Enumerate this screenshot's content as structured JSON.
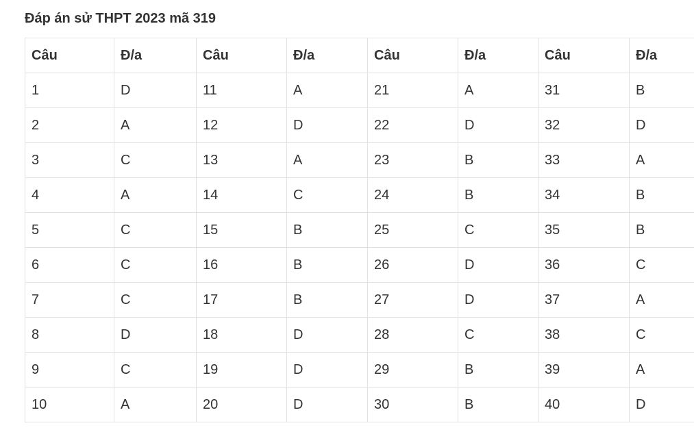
{
  "header": {
    "title": "Đáp án sử THPT 2023 mã 319"
  },
  "table": {
    "columns": [
      "Câu",
      "Đ/a",
      "Câu",
      "Đ/a",
      "Câu",
      "Đ/a",
      "Câu",
      "Đ/a"
    ],
    "rows": [
      [
        "1",
        "D",
        "11",
        "A",
        "21",
        "A",
        "31",
        "B"
      ],
      [
        "2",
        "A",
        "12",
        "D",
        "22",
        "D",
        "32",
        "D"
      ],
      [
        "3",
        "C",
        "13",
        "A",
        "23",
        "B",
        "33",
        "A"
      ],
      [
        "4",
        "A",
        "14",
        "C",
        "24",
        "B",
        "34",
        "B"
      ],
      [
        "5",
        "C",
        "15",
        "B",
        "25",
        "C",
        "35",
        "B"
      ],
      [
        "6",
        "C",
        "16",
        "B",
        "26",
        "D",
        "36",
        "C"
      ],
      [
        "7",
        "C",
        "17",
        "B",
        "27",
        "D",
        "37",
        "A"
      ],
      [
        "8",
        "D",
        "18",
        "D",
        "28",
        "C",
        "38",
        "C"
      ],
      [
        "9",
        "C",
        "19",
        "D",
        "29",
        "B",
        "39",
        "A"
      ],
      [
        "10",
        "A",
        "20",
        "D",
        "30",
        "B",
        "40",
        "D"
      ]
    ]
  }
}
